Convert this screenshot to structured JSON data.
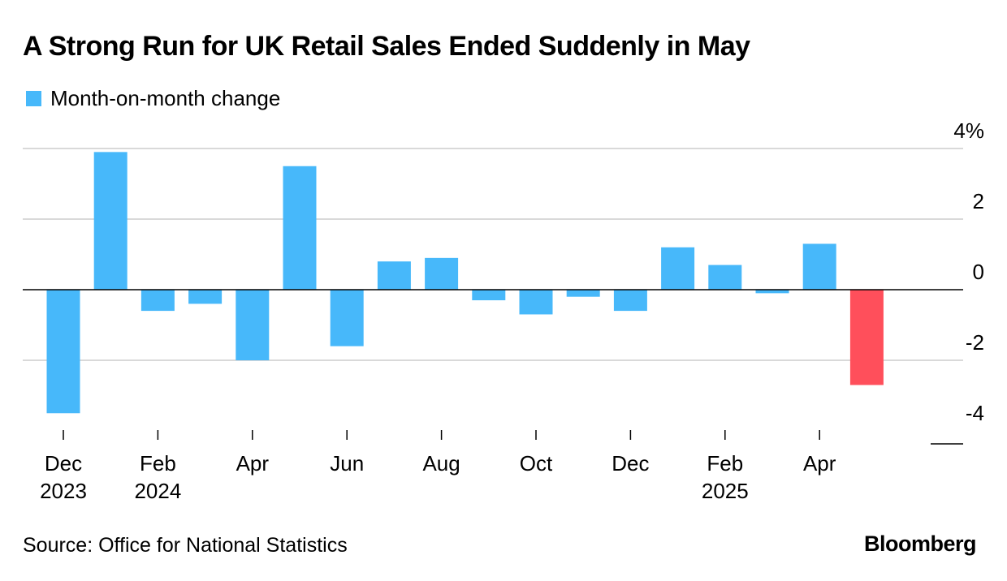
{
  "header": {
    "title": "A Strong Run for UK Retail Sales Ended Suddenly in May"
  },
  "legend": {
    "label": "Month-on-month change",
    "color": "#47b8fa"
  },
  "footer": {
    "source": "Source: Office for National Statistics",
    "brand": "Bloomberg"
  },
  "chart_data": {
    "type": "bar",
    "title": "A Strong Run for UK Retail Sales Ended Suddenly in May",
    "series_name": "Month-on-month change",
    "categories": [
      "Dec 2023",
      "Jan 2024",
      "Feb 2024",
      "Mar 2024",
      "Apr 2024",
      "May 2024",
      "Jun 2024",
      "Jul 2024",
      "Aug 2024",
      "Sep 2024",
      "Oct 2024",
      "Nov 2024",
      "Dec 2024",
      "Jan 2025",
      "Feb 2025",
      "Mar 2025",
      "Apr 2025",
      "May 2025"
    ],
    "values": [
      -3.5,
      3.9,
      -0.6,
      -0.4,
      -2.0,
      3.5,
      -1.6,
      0.8,
      0.9,
      -0.3,
      -0.7,
      -0.2,
      -0.6,
      1.2,
      0.7,
      -0.1,
      1.3,
      -2.7
    ],
    "colors": {
      "default": "#47b8fa",
      "highlight": "#ff4f5b",
      "highlight_index": 17,
      "grid": "#d9d9d9",
      "zero_line": "#000000"
    },
    "ylim": [
      -4,
      4
    ],
    "y_ticks": [
      {
        "value": 4,
        "label": "4%"
      },
      {
        "value": 2,
        "label": "2"
      },
      {
        "value": 0,
        "label": "0"
      },
      {
        "value": -2,
        "label": "-2"
      },
      {
        "value": -4,
        "label": "-4"
      }
    ],
    "x_ticks": [
      {
        "index": 0,
        "line1": "Dec",
        "line2": "2023"
      },
      {
        "index": 2,
        "line1": "Feb",
        "line2": "2024"
      },
      {
        "index": 4,
        "line1": "Apr",
        "line2": ""
      },
      {
        "index": 6,
        "line1": "Jun",
        "line2": ""
      },
      {
        "index": 8,
        "line1": "Aug",
        "line2": ""
      },
      {
        "index": 10,
        "line1": "Oct",
        "line2": ""
      },
      {
        "index": 12,
        "line1": "Dec",
        "line2": ""
      },
      {
        "index": 14,
        "line1": "Feb",
        "line2": "2025"
      },
      {
        "index": 16,
        "line1": "Apr",
        "line2": ""
      }
    ],
    "xlabel": "",
    "ylabel": "",
    "grid": true,
    "y_axis_side": "right",
    "legend_position": "top-left"
  }
}
